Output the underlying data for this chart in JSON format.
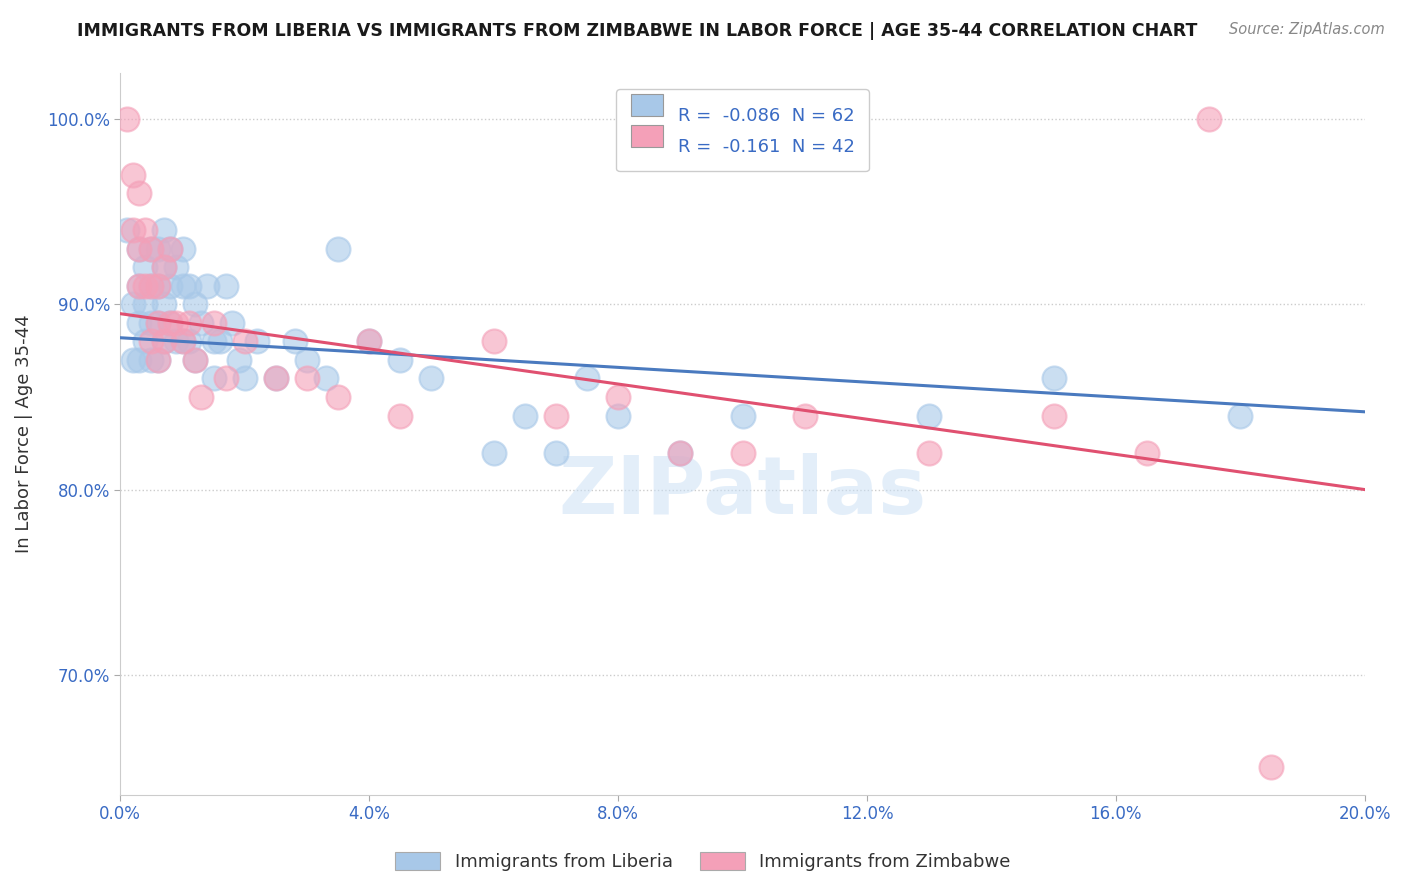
{
  "title": "IMMIGRANTS FROM LIBERIA VS IMMIGRANTS FROM ZIMBABWE IN LABOR FORCE | AGE 35-44 CORRELATION CHART",
  "source": "Source: ZipAtlas.com",
  "ylabel": "In Labor Force | Age 35-44",
  "xlim": [
    0.0,
    0.2
  ],
  "ylim": [
    0.635,
    1.025
  ],
  "xticks": [
    0.0,
    0.04,
    0.08,
    0.12,
    0.16,
    0.2
  ],
  "xtick_labels": [
    "0.0%",
    "4.0%",
    "8.0%",
    "12.0%",
    "16.0%",
    "20.0%"
  ],
  "yticks": [
    0.7,
    0.8,
    0.9,
    1.0
  ],
  "ytick_labels": [
    "70.0%",
    "80.0%",
    "90.0%",
    "100.0%"
  ],
  "liberia_R": -0.086,
  "liberia_N": 62,
  "zimbabwe_R": -0.161,
  "zimbabwe_N": 42,
  "liberia_color": "#a8c8e8",
  "zimbabwe_color": "#f4a0b8",
  "liberia_line_color": "#4a7abf",
  "zimbabwe_line_color": "#e05070",
  "background_color": "#ffffff",
  "liberia_line_y0": 0.882,
  "liberia_line_y1": 0.842,
  "zimbabwe_line_y0": 0.895,
  "zimbabwe_line_y1": 0.8,
  "liberia_x": [
    0.001,
    0.002,
    0.002,
    0.003,
    0.003,
    0.003,
    0.003,
    0.004,
    0.004,
    0.004,
    0.005,
    0.005,
    0.005,
    0.005,
    0.006,
    0.006,
    0.006,
    0.006,
    0.007,
    0.007,
    0.007,
    0.007,
    0.008,
    0.008,
    0.008,
    0.009,
    0.009,
    0.01,
    0.01,
    0.01,
    0.011,
    0.011,
    0.012,
    0.012,
    0.013,
    0.014,
    0.015,
    0.015,
    0.016,
    0.017,
    0.018,
    0.019,
    0.02,
    0.022,
    0.025,
    0.028,
    0.03,
    0.033,
    0.035,
    0.04,
    0.045,
    0.05,
    0.06,
    0.065,
    0.07,
    0.075,
    0.08,
    0.09,
    0.1,
    0.13,
    0.15,
    0.18
  ],
  "liberia_y": [
    0.94,
    0.9,
    0.87,
    0.93,
    0.91,
    0.89,
    0.87,
    0.92,
    0.9,
    0.88,
    0.93,
    0.91,
    0.89,
    0.87,
    0.93,
    0.91,
    0.89,
    0.87,
    0.94,
    0.92,
    0.9,
    0.88,
    0.93,
    0.91,
    0.89,
    0.92,
    0.88,
    0.93,
    0.91,
    0.88,
    0.91,
    0.88,
    0.9,
    0.87,
    0.89,
    0.91,
    0.88,
    0.86,
    0.88,
    0.91,
    0.89,
    0.87,
    0.86,
    0.88,
    0.86,
    0.88,
    0.87,
    0.86,
    0.93,
    0.88,
    0.87,
    0.86,
    0.82,
    0.84,
    0.82,
    0.86,
    0.84,
    0.82,
    0.84,
    0.84,
    0.86,
    0.84
  ],
  "zimbabwe_x": [
    0.001,
    0.002,
    0.002,
    0.003,
    0.003,
    0.003,
    0.004,
    0.004,
    0.005,
    0.005,
    0.005,
    0.006,
    0.006,
    0.006,
    0.007,
    0.007,
    0.008,
    0.008,
    0.009,
    0.01,
    0.011,
    0.012,
    0.013,
    0.015,
    0.017,
    0.02,
    0.025,
    0.03,
    0.035,
    0.04,
    0.045,
    0.06,
    0.07,
    0.08,
    0.09,
    0.1,
    0.11,
    0.13,
    0.15,
    0.165,
    0.175,
    0.185
  ],
  "zimbabwe_y": [
    1.0,
    0.97,
    0.94,
    0.96,
    0.93,
    0.91,
    0.94,
    0.91,
    0.93,
    0.91,
    0.88,
    0.91,
    0.89,
    0.87,
    0.92,
    0.88,
    0.93,
    0.89,
    0.89,
    0.88,
    0.89,
    0.87,
    0.85,
    0.89,
    0.86,
    0.88,
    0.86,
    0.86,
    0.85,
    0.88,
    0.84,
    0.88,
    0.84,
    0.85,
    0.82,
    0.82,
    0.84,
    0.82,
    0.84,
    0.82,
    1.0,
    0.65
  ]
}
